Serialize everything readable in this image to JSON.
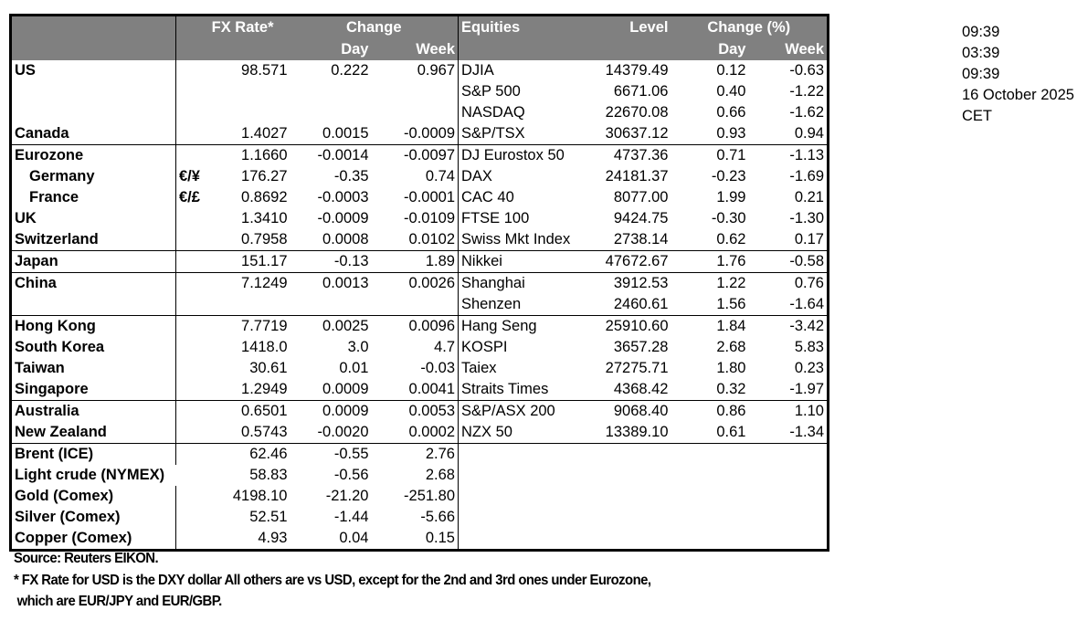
{
  "header": {
    "fx_rate": "FX Rate*",
    "change": "Change",
    "day": "Day",
    "week": "Week",
    "equities": "Equities",
    "level": "Level",
    "change_pct": "Change (%)",
    "eq_day": "Day",
    "eq_week": "Week"
  },
  "rows": [
    {
      "label": "US",
      "sym": "",
      "fx": "98.571",
      "day": "0.222",
      "week": "0.967",
      "eq": "DJIA",
      "level": "14379.49",
      "eq_day": "0.12",
      "eq_week": "-0.63"
    },
    {
      "label": "",
      "sym": "",
      "fx": "",
      "day": "",
      "week": "",
      "eq": "S&P 500",
      "level": "6671.06",
      "eq_day": "0.40",
      "eq_week": "-1.22"
    },
    {
      "label": "",
      "sym": "",
      "fx": "",
      "day": "",
      "week": "",
      "eq": "NASDAQ",
      "level": "22670.08",
      "eq_day": "0.66",
      "eq_week": "-1.62"
    },
    {
      "label": "Canada",
      "sym": "",
      "fx": "1.4027",
      "day": "0.0015",
      "week": "-0.0009",
      "eq": "S&P/TSX",
      "level": "30637.12",
      "eq_day": "0.93",
      "eq_week": "0.94"
    },
    {
      "label": "Eurozone",
      "sym": "",
      "fx": "1.1660",
      "day": "-0.0014",
      "week": "-0.0097",
      "eq": "DJ Eurostox 50",
      "level": "4737.36",
      "eq_day": "0.71",
      "eq_week": "-1.13"
    },
    {
      "label": "Germany",
      "indent": true,
      "sym": "€/¥",
      "fx": "176.27",
      "day": "-0.35",
      "week": "0.74",
      "eq": "DAX",
      "level": "24181.37",
      "eq_day": "-0.23",
      "eq_week": "-1.69"
    },
    {
      "label": "France",
      "indent": true,
      "sym": "€/£",
      "fx": "0.8692",
      "day": "-0.0003",
      "week": "-0.0001",
      "eq": "CAC 40",
      "level": "8077.00",
      "eq_day": "1.99",
      "eq_week": "0.21"
    },
    {
      "label": "UK",
      "sym": "",
      "fx": "1.3410",
      "day": "-0.0009",
      "week": "-0.0109",
      "eq": "FTSE 100",
      "level": "9424.75",
      "eq_day": "-0.30",
      "eq_week": "-1.30"
    },
    {
      "label": "Switzerland",
      "sym": "",
      "fx": "0.7958",
      "day": "0.0008",
      "week": "0.0102",
      "eq": "Swiss Mkt Index",
      "level": "2738.14",
      "eq_day": "0.62",
      "eq_week": "0.17"
    },
    {
      "label": "Japan",
      "sym": "",
      "fx": "151.17",
      "day": "-0.13",
      "week": "1.89",
      "eq": "Nikkei",
      "level": "47672.67",
      "eq_day": "1.76",
      "eq_week": "-0.58"
    },
    {
      "label": "China",
      "sym": "",
      "fx": "7.1249",
      "day": "0.0013",
      "week": "0.0026",
      "eq": "Shanghai",
      "level": "3912.53",
      "eq_day": "1.22",
      "eq_week": "0.76"
    },
    {
      "label": "",
      "sym": "",
      "fx": "",
      "day": "",
      "week": "",
      "eq": "Shenzen",
      "level": "2460.61",
      "eq_day": "1.56",
      "eq_week": "-1.64"
    },
    {
      "label": "Hong Kong",
      "sym": "",
      "fx": "7.7719",
      "day": "0.0025",
      "week": "0.0096",
      "eq": "Hang Seng",
      "level": "25910.60",
      "eq_day": "1.84",
      "eq_week": "-3.42"
    },
    {
      "label": "South Korea",
      "sym": "",
      "fx": "1418.0",
      "day": "3.0",
      "week": "4.7",
      "eq": "KOSPI",
      "level": "3657.28",
      "eq_day": "2.68",
      "eq_week": "5.83"
    },
    {
      "label": "Taiwan",
      "sym": "",
      "fx": "30.61",
      "day": "0.01",
      "week": "-0.03",
      "eq": "Taiex",
      "level": "27275.71",
      "eq_day": "1.80",
      "eq_week": "0.23"
    },
    {
      "label": "Singapore",
      "sym": "",
      "fx": "1.2949",
      "day": "0.0009",
      "week": "0.0041",
      "eq": "Straits Times",
      "level": "4368.42",
      "eq_day": "0.32",
      "eq_week": "-1.97"
    },
    {
      "label": "Australia",
      "sym": "",
      "fx": "0.6501",
      "day": "0.0009",
      "week": "0.0053",
      "eq": "S&P/ASX  200",
      "level": "9068.40",
      "eq_day": "0.86",
      "eq_week": "1.10"
    },
    {
      "label": "New Zealand",
      "sym": "",
      "fx": "0.5743",
      "day": "-0.0020",
      "week": "0.0002",
      "eq": "NZX 50",
      "level": "13389.10",
      "eq_day": "0.61",
      "eq_week": "-1.34"
    },
    {
      "label": "Brent (ICE)",
      "sym": "",
      "fx": "62.46",
      "day": "-0.55",
      "week": "2.76",
      "eq": "",
      "level": "",
      "eq_day": "",
      "eq_week": ""
    },
    {
      "label": "Light crude (NYMEX)",
      "sym": "",
      "fx": "58.83",
      "day": "-0.56",
      "week": "2.68",
      "eq": "",
      "level": "",
      "eq_day": "",
      "eq_week": ""
    },
    {
      "label": "Gold (Comex)",
      "sym": "",
      "fx": "4198.10",
      "day": "-21.20",
      "week": "-251.80",
      "eq": "",
      "level": "",
      "eq_day": "",
      "eq_week": ""
    },
    {
      "label": "Silver (Comex)",
      "sym": "",
      "fx": "52.51",
      "day": "-1.44",
      "week": "-5.66",
      "eq": "",
      "level": "",
      "eq_day": "",
      "eq_week": ""
    },
    {
      "label": "Copper (Comex)",
      "sym": "",
      "fx": "4.93",
      "day": "0.04",
      "week": "0.15",
      "eq": "",
      "level": "",
      "eq_day": "",
      "eq_week": ""
    }
  ],
  "times": [
    "09:39",
    "03:39",
    "09:39",
    "16 October 2025",
    "CET"
  ],
  "footnotes": {
    "source": "Source:  Reuters EIKON.",
    "note1": "* FX Rate for USD is the DXY dollar  All others are vs USD, except for the 2nd and 3rd ones under Eurozone,",
    "note2": " which are EUR/JPY and EUR/GBP."
  },
  "colors": {
    "header_bg": "#808080",
    "header_text": "#ffffff"
  }
}
